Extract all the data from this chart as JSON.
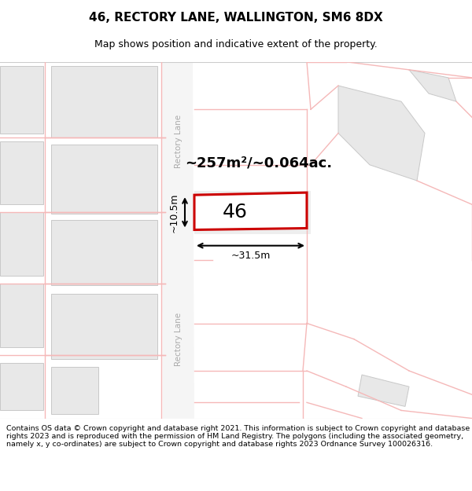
{
  "title_line1": "46, RECTORY LANE, WALLINGTON, SM6 8DX",
  "title_line2": "Map shows position and indicative extent of the property.",
  "footer_text": "Contains OS data © Crown copyright and database right 2021. This information is subject to Crown copyright and database rights 2023 and is reproduced with the permission of HM Land Registry. The polygons (including the associated geometry, namely x, y co-ordinates) are subject to Crown copyright and database rights 2023 Ordnance Survey 100026316.",
  "map_bg": "#ffffff",
  "building_color": "#e8e8e8",
  "building_edge": "#c8c8c8",
  "highlight_color": "#cc0000",
  "pink": "#f5b8b8",
  "area_label": "~257m²/~0.064ac.",
  "number_label": "46",
  "width_label": "~31.5m",
  "height_label": "~10.5m",
  "road_label_top": "Rectory Lane",
  "road_label_bottom": "Rectory Lane",
  "title_fontsize": 11,
  "subtitle_fontsize": 9,
  "footer_fontsize": 6.8
}
